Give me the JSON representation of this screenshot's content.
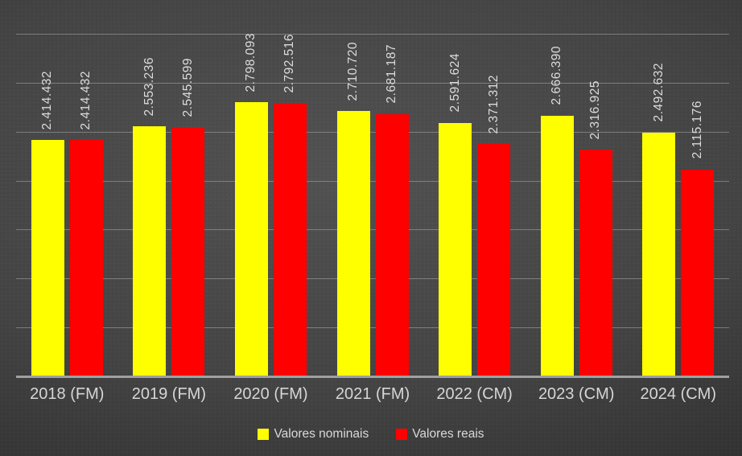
{
  "chart_data": {
    "type": "bar",
    "categories": [
      "2018 (FM)",
      "2019 (FM)",
      "2020 (FM)",
      "2021 (FM)",
      "2022 (CM)",
      "2023 (CM)",
      "2024 (CM)"
    ],
    "series": [
      {
        "name": "Valores nominais",
        "color": "#ffff00",
        "values": [
          2414432,
          2553236,
          2798093,
          2710720,
          2591624,
          2666390,
          2492632
        ],
        "labels": [
          "2.414.432",
          "2.553.236",
          "2.798.093",
          "2.710.720",
          "2.591.624",
          "2.666.390",
          "2.492.632"
        ]
      },
      {
        "name": "Valores reais",
        "color": "#ff0000",
        "values": [
          2414432,
          2545599,
          2792516,
          2681187,
          2371312,
          2316925,
          2115176
        ],
        "labels": [
          "2.414.432",
          "2.545.599",
          "2.792.516",
          "2.681.187",
          "2.371.312",
          "2.316.925",
          "2.115.176"
        ]
      }
    ],
    "title": "",
    "xlabel": "",
    "ylabel": "",
    "ylim": [
      0,
      3500000
    ],
    "gridline_interval": 500000,
    "grid": true,
    "y_tick_labels_visible": false,
    "data_labels_rotation": "vertical",
    "legend_position": "bottom",
    "colors": {
      "background_center": "#515151",
      "background_edge": "#1f1f1f",
      "gridline": "#d6d6d6",
      "axis_line": "#a0a0a0",
      "text": "#d9d9d9"
    }
  }
}
